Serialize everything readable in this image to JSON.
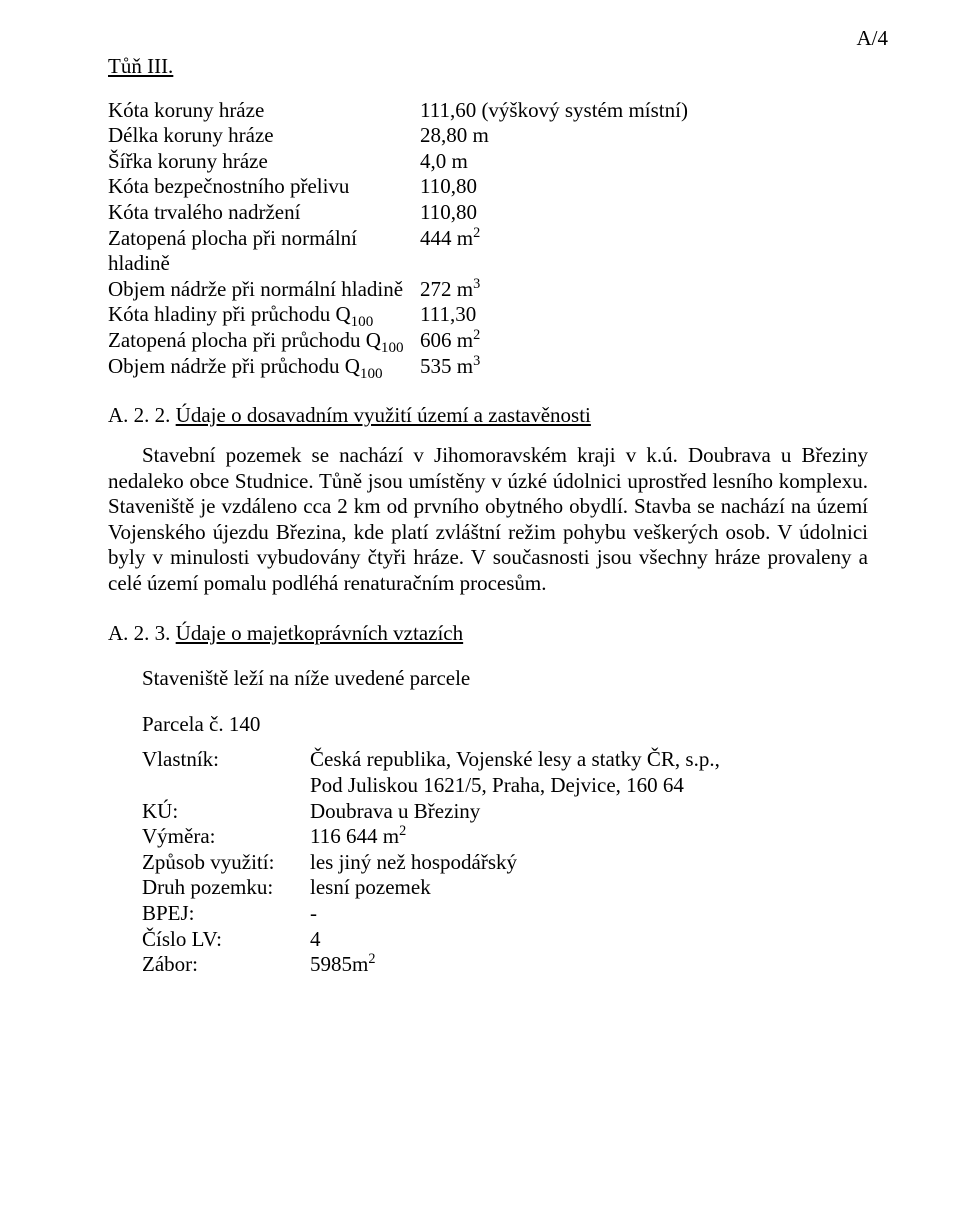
{
  "page_label": "A/4",
  "section1_title": "Tůň III.",
  "dam": {
    "rows": [
      {
        "k": "Kóta koruny hráze",
        "v": "111,60",
        "note": "  (výškový systém místní)"
      },
      {
        "k": "Délka koruny hráze",
        "v": "28,80 m"
      },
      {
        "k": "Šířka koruny hráze",
        "v": "4,0 m"
      },
      {
        "k": "Kóta bezpečnostního přelivu",
        "v": "110,80"
      },
      {
        "k": "Kóta trvalého nadržení",
        "v": "110,80"
      },
      {
        "k": "Zatopená plocha při normální hladině",
        "v": "444 m",
        "sup": "2"
      },
      {
        "k": "Objem nádrže při normální hladině",
        "v": "272 m",
        "sup": "3"
      },
      {
        "k_html": "Kóta hladiny při průchodu Q<sub>100</sub>",
        "v": "111,30"
      },
      {
        "k_html": "Zatopená plocha při průchodu Q<sub>100</sub>",
        "v": "606 m",
        "sup": "2"
      },
      {
        "k_html": "Objem nádrže při průchodu Q<sub>100</sub>",
        "v": "535 m",
        "sup": "3"
      }
    ]
  },
  "sec2_title": "A. 2. 2. Údaje o dosavadním využití území a zastavěnosti",
  "sec2_body": "Stavební pozemek se nachází v Jihomoravském kraji v k.ú. Doubrava u Březiny nedaleko obce Studnice. Tůně jsou umístěny v úzké údolnici uprostřed lesního komplexu. Staveniště je vzdáleno cca 2 km od prvního obytného obydlí. Stavba se nachází na území Vojenského újezdu Březina, kde platí zvláštní režim pohybu veškerých osob. V údolnici byly v minulosti vybudovány čtyři hráze. V současnosti jsou všechny hráze provaleny a celé území pomalu podléhá renaturačním procesům.",
  "sec3_title": "A. 2. 3. Údaje o majetkoprávních vztazích",
  "sec3_line1": "Staveniště leží na níže uvedené parcele",
  "sec3_line2": "Parcela č. 140",
  "parcel": {
    "rows": [
      {
        "k": "Vlastník:",
        "v": "Česká republika, Vojenské lesy a statky ČR, s.p.,"
      },
      {
        "k": "",
        "v": "Pod Juliskou 1621/5, Praha, Dejvice, 160 64"
      },
      {
        "k": "KÚ:",
        "v": "Doubrava u Březiny"
      },
      {
        "k": "Výměra:",
        "v": "116 644 m",
        "sup": "2"
      },
      {
        "k": "Způsob využití:",
        "v": "les jiný než hospodářský"
      },
      {
        "k": "Druh pozemku:",
        "v": "lesní pozemek"
      },
      {
        "k": "BPEJ:",
        "v": "-"
      },
      {
        "k": "Číslo LV:",
        "v": "4"
      },
      {
        "k": "Zábor:",
        "v": "5985m",
        "sup": "2"
      }
    ]
  }
}
